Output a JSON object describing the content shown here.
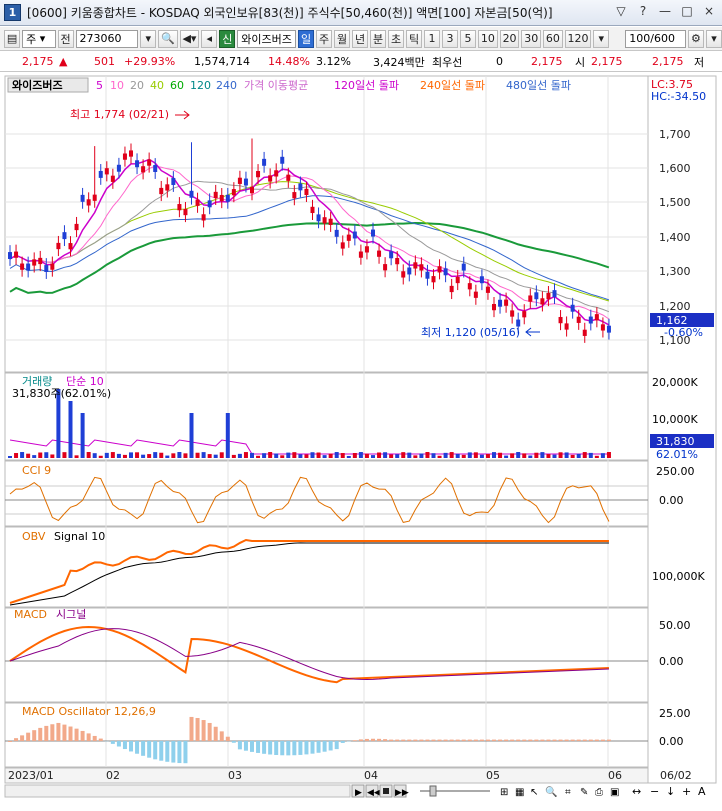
{
  "window": {
    "number": "1",
    "title": "[0600] 키움종합차트 - KOSDAQ 외국인보유[83(천)] 주식수[50,460(천)] 액면[100] 자본금[50(억)]",
    "controls": [
      "▽",
      "?",
      "—",
      "□",
      "×"
    ]
  },
  "toolbar": {
    "market": "주",
    "market_opt": "전",
    "code": "273060",
    "stock_tag": "신",
    "stock_name": "와이즈버즈",
    "periods": [
      "일",
      "주",
      "월",
      "년",
      "분",
      "초",
      "틱"
    ],
    "selected_period": "일",
    "intervals": [
      "1",
      "3",
      "5",
      "10",
      "20",
      "30",
      "60",
      "120"
    ],
    "count": "100",
    "count_total": "/600"
  },
  "quote": {
    "price": "2,175",
    "price_arrow": "▲",
    "change": "501",
    "change_pct": "+29.93%",
    "volume": "1,574,714",
    "turnover_pct": "14.48%",
    "ratio": "3.12%",
    "amount": "3,424백만",
    "best_quote_label": "최우선",
    "best_quote": "0",
    "price2": "2,175",
    "open_label": "시",
    "open": "2,175",
    "high_val": "2,175",
    "high_label": "저",
    "low": "2,175"
  },
  "price_panel": {
    "name": "와이즈버즈",
    "ma_labels": [
      {
        "text": "5",
        "color": "#cc00cc"
      },
      {
        "text": "10",
        "color": "#ff66cc"
      },
      {
        "text": "20",
        "color": "#999999"
      },
      {
        "text": "40",
        "color": "#99cc00"
      },
      {
        "text": "60",
        "color": "#00aa00"
      },
      {
        "text": "120",
        "color": "#008888"
      },
      {
        "text": "240",
        "color": "#3366cc"
      },
      {
        "text": "가격 이동평균",
        "color": "#cc66cc"
      },
      {
        "text": "120일선 돌파",
        "color": "#cc00cc"
      },
      {
        "text": "240일선 돌파",
        "color": "#ff6600"
      },
      {
        "text": "480일선 돌파",
        "color": "#3366cc"
      }
    ],
    "lc": "LC:3.75",
    "hc": "HC:-34.50",
    "high_note": "최고 1,774 (02/21)",
    "low_note": "최저 1,120 (05/16)",
    "current": "1,162",
    "current_pct": "-0.60%",
    "yticks": [
      "1,700",
      "1,600",
      "1,500",
      "1,400",
      "1,300",
      "1,200",
      "1,100"
    ]
  },
  "volume_panel": {
    "label": "거래량",
    "label2": "단순 10",
    "value": "31,830주(62.01%)",
    "yticks": [
      "20,000K",
      "10,000K"
    ],
    "current": "31,830",
    "current_pct": "62.01%"
  },
  "cci_panel": {
    "label": "CCI 9",
    "yticks": [
      "250.00",
      "0.00"
    ]
  },
  "obv_panel": {
    "label": "OBV",
    "label2": "Signal 10",
    "yticks": [
      "100,000K"
    ]
  },
  "macd_panel": {
    "label": "MACD",
    "label2": "시그널",
    "yticks": [
      "50.00",
      "0.00"
    ]
  },
  "osc_panel": {
    "label": "MACD Oscillator 12,26,9",
    "yticks": [
      "25.00",
      "0.00"
    ]
  },
  "xaxis": {
    "labels": [
      "2023/01",
      "02",
      "03",
      "04",
      "05",
      "06",
      "06/02"
    ]
  },
  "chart_data": {
    "type": "line",
    "x": [
      "2023/01",
      "02",
      "03",
      "04",
      "05",
      "06"
    ],
    "series": [
      {
        "name": "와이즈버즈",
        "values": [
          1320,
          1560,
          1540,
          1290,
          1210,
          1162
        ]
      }
    ],
    "ylim": [
      1050,
      1800
    ]
  }
}
